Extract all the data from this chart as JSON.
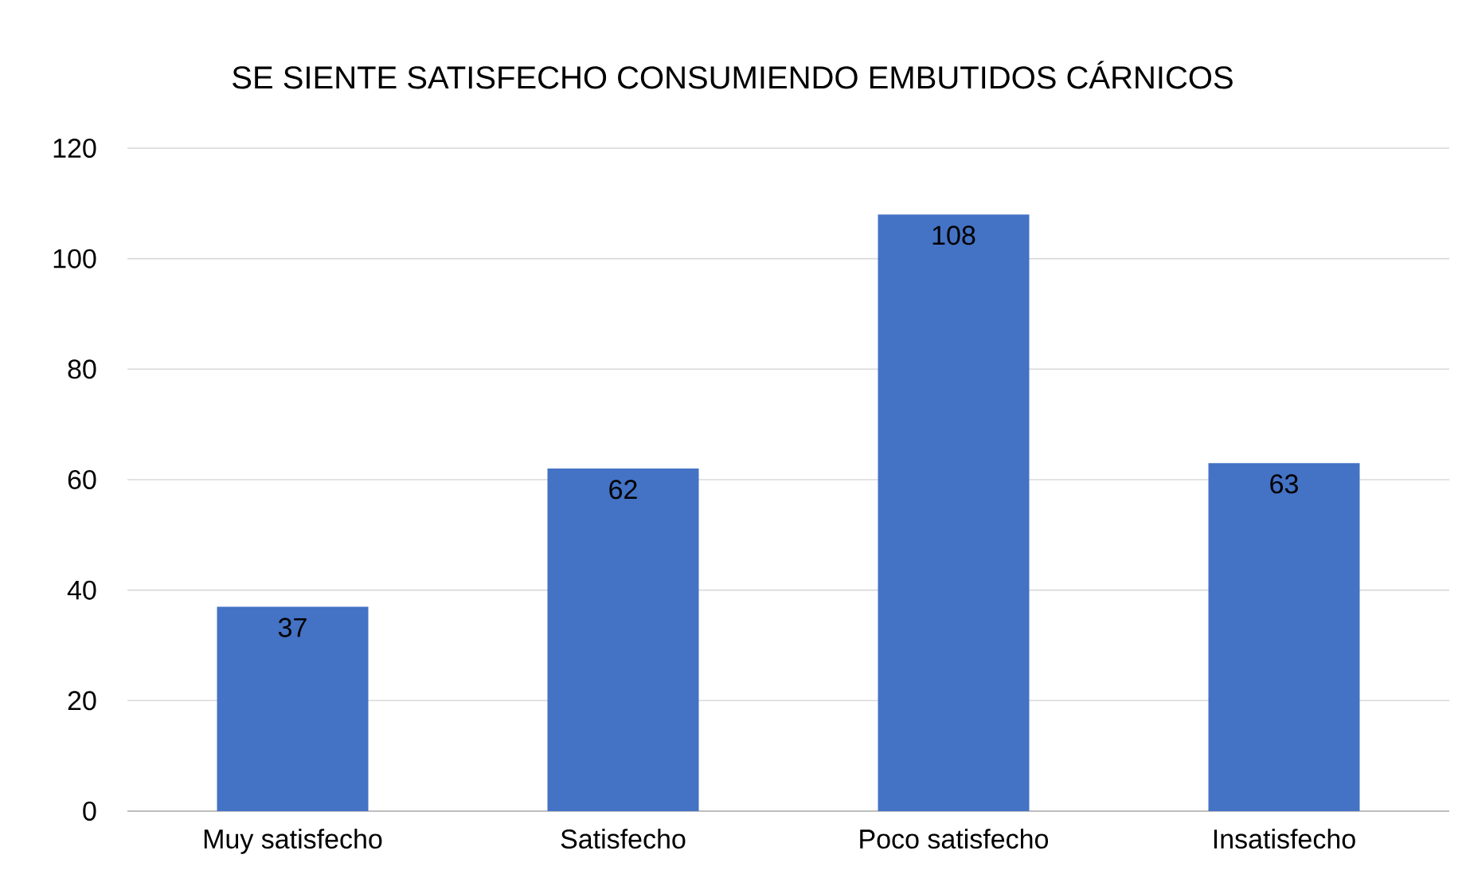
{
  "chart_data": {
    "type": "bar",
    "title": "SE SIENTE SATISFECHO CONSUMIENDO EMBUTIDOS CÁRNICOS",
    "categories": [
      "Muy satisfecho",
      "Satisfecho",
      "Poco satisfecho",
      "Insatisfecho"
    ],
    "values": [
      37,
      62,
      108,
      63
    ],
    "color": "#4472c4",
    "ylim": [
      0,
      120
    ],
    "yticks": [
      0,
      20,
      40,
      60,
      80,
      100,
      120
    ],
    "grid": "y",
    "data_labels": true
  }
}
